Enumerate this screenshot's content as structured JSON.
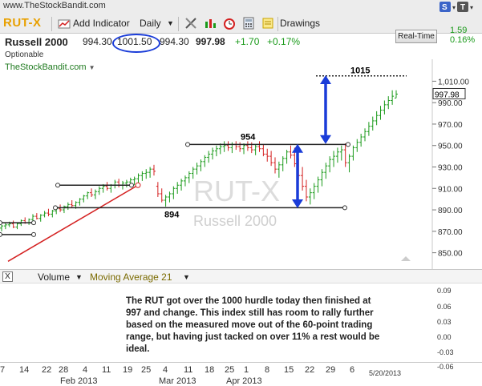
{
  "app": {
    "site": "www.TheStockBandit.com"
  },
  "toolbar": {
    "symbol": "RUT-X",
    "add_indicator": "Add Indicator",
    "interval": "Daily",
    "drawings": "Drawings"
  },
  "quote": {
    "name": "Russell 2000",
    "open": "994.30",
    "high": "1001.50",
    "low": "994.30",
    "last": "997.98",
    "change": "+1.70",
    "change_pct": "+0.17%",
    "optionable": "Optionable",
    "realtime_label": "Real-Time",
    "rt_change": "1.59",
    "rt_pct": "0.16%"
  },
  "chart": {
    "source": "TheStockBandit.com",
    "watermark_symbol": "RUT-X",
    "watermark_name": "Russell 2000",
    "price_label": "997.98",
    "annotations": {
      "top": "1015",
      "mid": "954",
      "bottom": "894"
    }
  },
  "volume_bar": {
    "close": "X",
    "volume": "Volume",
    "ma": "Moving Average 21"
  },
  "commentary": "The RUT got over the 1000 hurdle today then finished at 997 and change.  This index still has room to rally further based on the measured move out of the 60-point trading range, but having just tacked on over 11% a rest would be ideal.",
  "vol_axis": [
    "0.09",
    "0.06",
    "0.03",
    "0.00",
    "-0.03",
    "-0.06"
  ],
  "date_stamp": "5/20/2013",
  "xaxis": {
    "ticks": [
      "7",
      "14",
      "22",
      "28",
      "4",
      "11",
      "19",
      "25",
      "4",
      "11",
      "18",
      "25",
      "1",
      "8",
      "15",
      "22",
      "29",
      "6"
    ],
    "months": [
      "Feb 2013",
      "Mar 2013",
      "Apr 2013"
    ]
  },
  "colors": {
    "up": "#1a9a1a",
    "down": "#d42020",
    "arrow": "#1a3cd8",
    "symbol": "#e8a000"
  },
  "chart_data": {
    "type": "ohlc",
    "title": "RUT-X",
    "ylim": [
      840,
      1020
    ],
    "yticks": [
      850,
      870,
      890,
      910,
      930,
      950,
      970,
      990,
      1010
    ],
    "ytick_labels": [
      "850.00",
      "870.00",
      "890.00",
      "910.00",
      "930.00",
      "950.00",
      "970.00",
      "990.00",
      "1,010.00"
    ],
    "bars": [
      [
        873,
        876,
        870,
        875
      ],
      [
        875,
        878,
        872,
        876
      ],
      [
        876,
        879,
        874,
        877
      ],
      [
        877,
        880,
        873,
        874
      ],
      [
        874,
        878,
        872,
        877
      ],
      [
        877,
        881,
        875,
        880
      ],
      [
        880,
        883,
        877,
        878
      ],
      [
        878,
        882,
        876,
        881
      ],
      [
        881,
        886,
        879,
        884
      ],
      [
        884,
        887,
        881,
        882
      ],
      [
        882,
        886,
        879,
        885
      ],
      [
        885,
        889,
        883,
        887
      ],
      [
        887,
        891,
        884,
        886
      ],
      [
        886,
        890,
        883,
        889
      ],
      [
        889,
        893,
        886,
        891
      ],
      [
        891,
        895,
        888,
        890
      ],
      [
        890,
        894,
        887,
        893
      ],
      [
        893,
        897,
        890,
        895
      ],
      [
        895,
        899,
        892,
        894
      ],
      [
        894,
        898,
        891,
        897
      ],
      [
        897,
        901,
        894,
        900
      ],
      [
        900,
        904,
        897,
        903
      ],
      [
        903,
        907,
        900,
        906
      ],
      [
        906,
        910,
        902,
        904
      ],
      [
        904,
        909,
        900,
        907
      ],
      [
        907,
        912,
        904,
        910
      ],
      [
        910,
        914,
        906,
        912
      ],
      [
        912,
        916,
        908,
        910
      ],
      [
        910,
        914,
        906,
        913
      ],
      [
        913,
        918,
        910,
        916
      ],
      [
        916,
        919,
        911,
        913
      ],
      [
        913,
        917,
        909,
        915
      ],
      [
        915,
        918,
        911,
        916
      ],
      [
        916,
        920,
        912,
        918
      ],
      [
        918,
        921,
        913,
        919
      ],
      [
        919,
        924,
        915,
        922
      ],
      [
        922,
        926,
        917,
        924
      ],
      [
        924,
        928,
        919,
        925
      ],
      [
        925,
        930,
        920,
        928
      ],
      [
        928,
        932,
        922,
        926
      ],
      [
        912,
        916,
        902,
        905
      ],
      [
        905,
        910,
        897,
        899
      ],
      [
        899,
        904,
        893,
        902
      ],
      [
        902,
        907,
        897,
        905
      ],
      [
        905,
        912,
        900,
        910
      ],
      [
        910,
        916,
        905,
        913
      ],
      [
        913,
        919,
        908,
        917
      ],
      [
        917,
        922,
        912,
        920
      ],
      [
        920,
        926,
        915,
        924
      ],
      [
        924,
        930,
        919,
        928
      ],
      [
        928,
        934,
        923,
        931
      ],
      [
        931,
        937,
        926,
        935
      ],
      [
        935,
        941,
        930,
        939
      ],
      [
        939,
        945,
        934,
        942
      ],
      [
        942,
        948,
        937,
        945
      ],
      [
        945,
        950,
        940,
        947
      ],
      [
        947,
        952,
        942,
        949
      ],
      [
        949,
        954,
        944,
        950
      ],
      [
        950,
        954,
        945,
        948
      ],
      [
        948,
        953,
        943,
        951
      ],
      [
        951,
        954,
        946,
        949
      ],
      [
        949,
        953,
        944,
        947
      ],
      [
        947,
        952,
        942,
        950
      ],
      [
        950,
        954,
        945,
        948
      ],
      [
        948,
        953,
        943,
        946
      ],
      [
        946,
        951,
        941,
        949
      ],
      [
        949,
        954,
        944,
        947
      ],
      [
        947,
        951,
        940,
        942
      ],
      [
        942,
        947,
        935,
        940
      ],
      [
        940,
        945,
        931,
        934
      ],
      [
        934,
        939,
        924,
        928
      ],
      [
        928,
        935,
        920,
        932
      ],
      [
        932,
        940,
        926,
        938
      ],
      [
        938,
        946,
        933,
        944
      ],
      [
        944,
        950,
        938,
        941
      ],
      [
        941,
        948,
        930,
        933
      ],
      [
        933,
        938,
        918,
        922
      ],
      [
        922,
        930,
        908,
        912
      ],
      [
        912,
        918,
        898,
        902
      ],
      [
        902,
        910,
        895,
        906
      ],
      [
        906,
        915,
        900,
        912
      ],
      [
        912,
        921,
        906,
        918
      ],
      [
        918,
        928,
        912,
        925
      ],
      [
        925,
        934,
        919,
        931
      ],
      [
        931,
        940,
        925,
        937
      ],
      [
        937,
        945,
        930,
        940
      ],
      [
        940,
        948,
        934,
        944
      ],
      [
        944,
        950,
        936,
        946
      ],
      [
        946,
        952,
        930,
        934
      ],
      [
        934,
        942,
        925,
        940
      ],
      [
        940,
        950,
        936,
        948
      ],
      [
        948,
        956,
        944,
        953
      ],
      [
        953,
        961,
        949,
        958
      ],
      [
        958,
        966,
        954,
        963
      ],
      [
        963,
        972,
        959,
        968
      ],
      [
        968,
        977,
        964,
        973
      ],
      [
        973,
        982,
        969,
        978
      ],
      [
        978,
        987,
        974,
        983
      ],
      [
        983,
        992,
        979,
        988
      ],
      [
        988,
        996,
        984,
        992
      ],
      [
        992,
        1001.5,
        988,
        996
      ],
      [
        994.3,
        1001.5,
        994.3,
        997.98
      ]
    ]
  }
}
